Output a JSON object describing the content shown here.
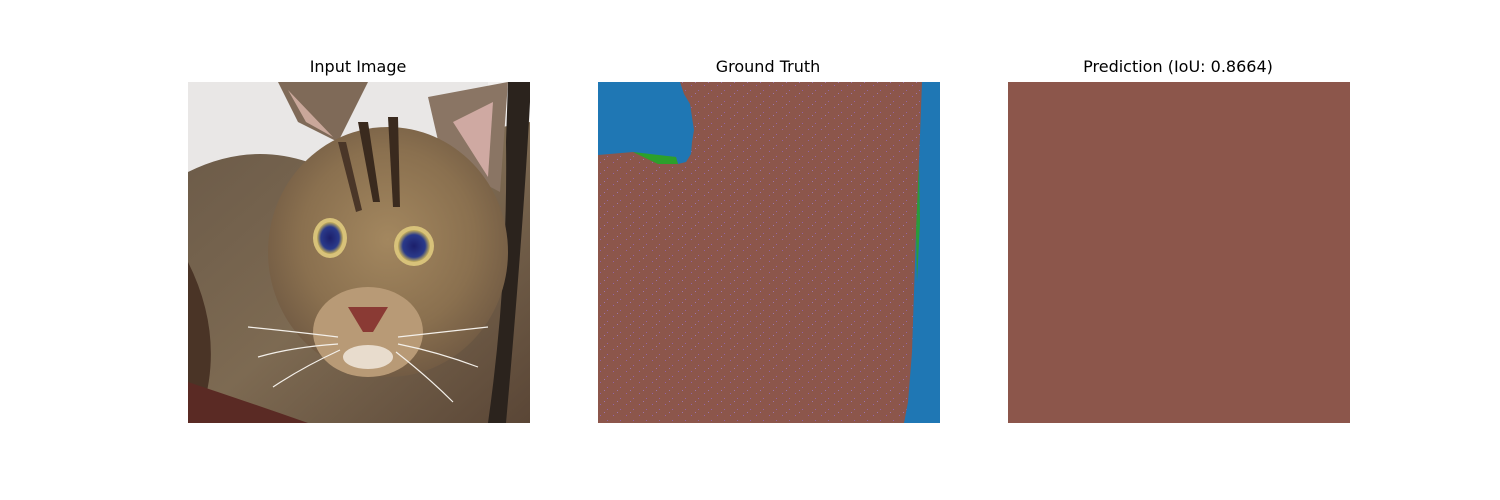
{
  "panels": {
    "input": {
      "title": "Input Image"
    },
    "ground_truth": {
      "title": "Ground Truth"
    },
    "prediction": {
      "title": "Prediction (IoU: 0.8664)"
    }
  },
  "colors": {
    "foreground_class": "#8c564b",
    "background_class": "#1f77b4",
    "boundary_class": "#2ca02c",
    "noise_speckle": "#9467bd"
  }
}
